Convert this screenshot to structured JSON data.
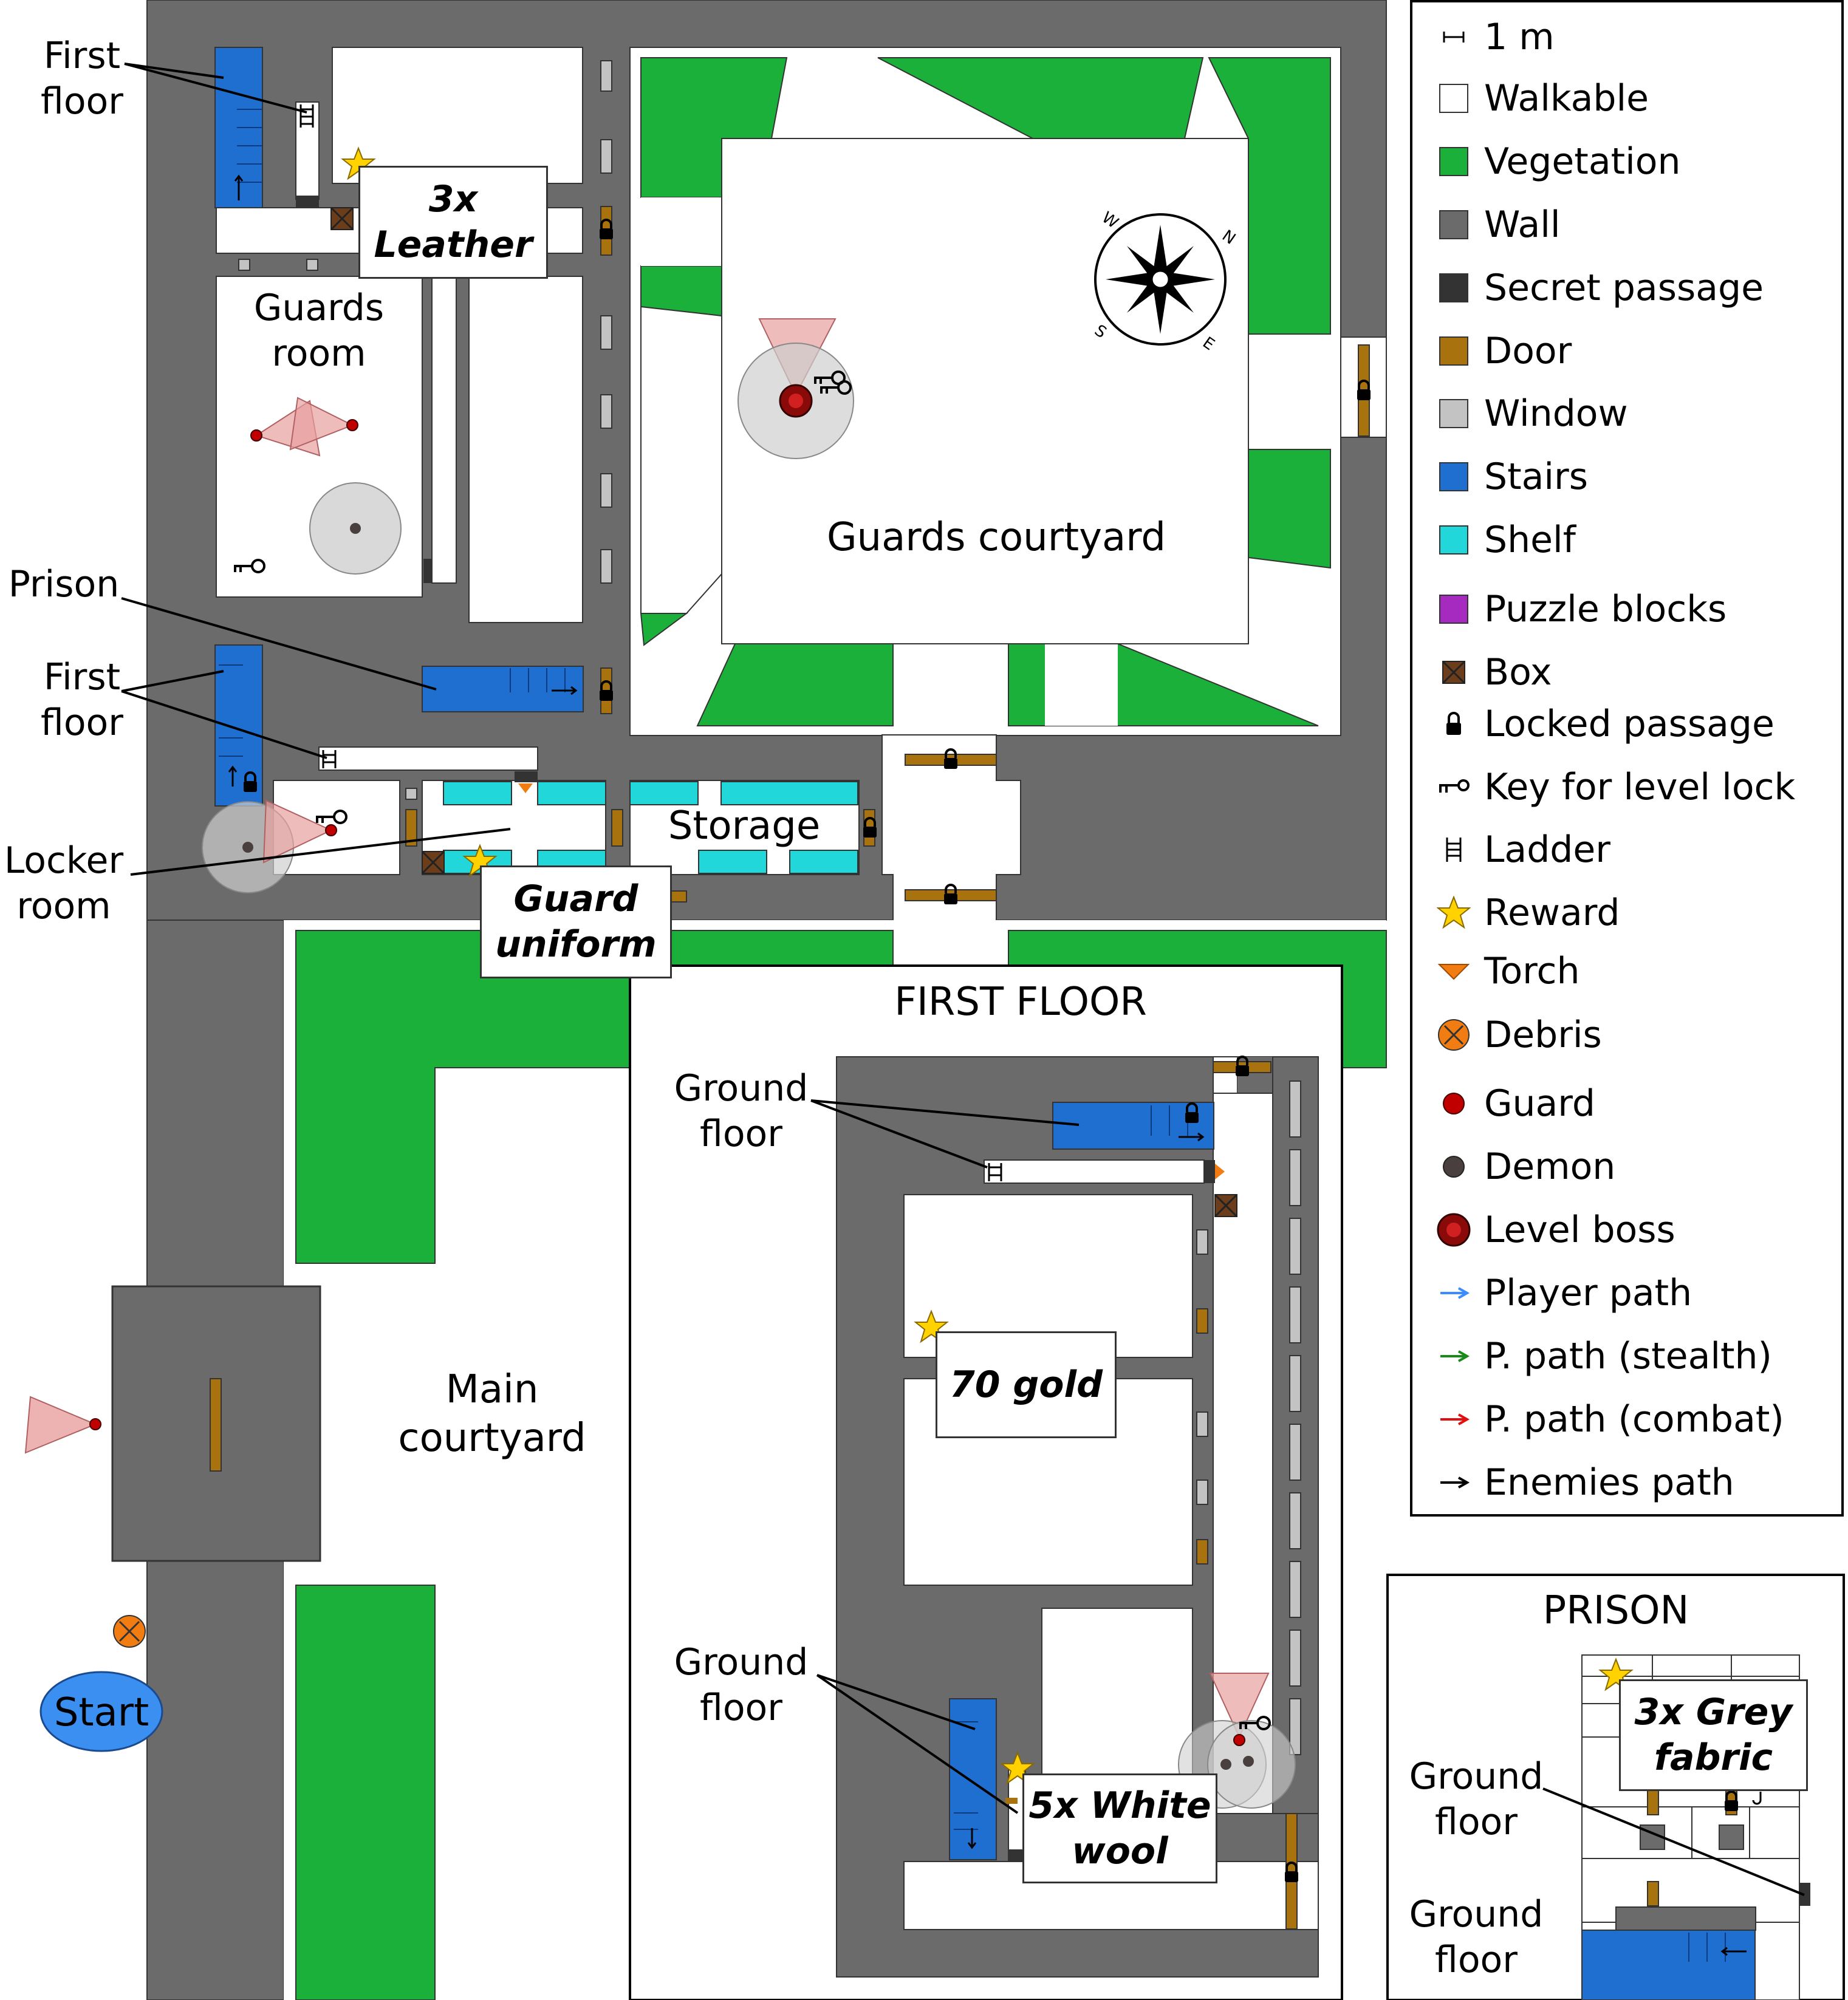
{
  "colors": {
    "walkable": "#ffffff",
    "vegetation": "#1ab03a",
    "wall": "#6b6b6b",
    "secret_passage": "#333333",
    "door": "#a8720f",
    "window": "#c3c3c3",
    "stairs": "#1f6fd0",
    "shelf": "#21d7da",
    "puzzle_blocks": "#a62ac0",
    "box": "#6b3d1a",
    "reward": "#ffd200",
    "torch": "#f07c12",
    "debris": "#f07c12",
    "guard": "#c00000",
    "demon": "#4a3f3f",
    "level_boss": "#8a0a0a",
    "player_path": "#3a8cff",
    "stealth_path": "#1a8a1a",
    "combat_path": "#e01010",
    "enemies_path": "#000000",
    "vision_cone": "#e8a0a0",
    "hearing_radius": "#cfcfcf",
    "start": "#3a8ff0"
  },
  "labels": {
    "first_floor_top": "First\nfloor",
    "guards_room": "Guards\nroom",
    "prison": "Prison",
    "first_floor_mid": "First\nfloor",
    "locker_room": "Locker\nroom",
    "guards_courtyard": "Guards courtyard",
    "storage": "Storage",
    "main_courtyard": "Main\ncourtyard",
    "start": "Start",
    "first_floor_panel": "FIRST FLOOR",
    "ground_floor_1": "Ground\nfloor",
    "ground_floor_2": "Ground\nfloor",
    "prison_panel": "PRISON",
    "ground_floor_3": "Ground\nfloor",
    "ground_floor_4": "Ground\nfloor",
    "compass_n": "N",
    "compass_e": "E",
    "compass_s": "S",
    "compass_w": "W"
  },
  "rewards": {
    "leather": "3x\nLeather",
    "uniform": "Guard\nuniform",
    "gold": "70 gold",
    "wool": "5x White\nwool",
    "grey_fabric": "3x Grey\nfabric"
  },
  "legend": [
    {
      "icon": "scale-icon",
      "label": "1 m"
    },
    {
      "icon": "walkable-swatch",
      "label": "Walkable"
    },
    {
      "icon": "vegetation-swatch",
      "label": "Vegetation"
    },
    {
      "icon": "wall-swatch",
      "label": "Wall"
    },
    {
      "icon": "secret-passage-swatch",
      "label": "Secret passage"
    },
    {
      "icon": "door-swatch",
      "label": "Door"
    },
    {
      "icon": "window-swatch",
      "label": "Window"
    },
    {
      "icon": "stairs-swatch",
      "label": "Stairs"
    },
    {
      "icon": "shelf-swatch",
      "label": "Shelf"
    },
    {
      "icon": "puzzle-blocks-swatch",
      "label": "Puzzle blocks"
    },
    {
      "icon": "box-icon",
      "label": "Box"
    },
    {
      "icon": "lock-icon",
      "label": "Locked passage"
    },
    {
      "icon": "key-icon",
      "label": "Key for level lock"
    },
    {
      "icon": "ladder-icon",
      "label": "Ladder"
    },
    {
      "icon": "star-icon",
      "label": "Reward"
    },
    {
      "icon": "torch-icon",
      "label": "Torch"
    },
    {
      "icon": "debris-icon",
      "label": "Debris"
    },
    {
      "icon": "guard-icon",
      "label": "Guard"
    },
    {
      "icon": "demon-icon",
      "label": "Demon"
    },
    {
      "icon": "level-boss-icon",
      "label": "Level boss"
    },
    {
      "icon": "player-path-arrow-icon",
      "label": "Player path"
    },
    {
      "icon": "stealth-path-arrow-icon",
      "label": "P. path (stealth)"
    },
    {
      "icon": "combat-path-arrow-icon",
      "label": "P. path (combat)"
    },
    {
      "icon": "enemies-path-arrow-icon",
      "label": "Enemies path"
    }
  ]
}
